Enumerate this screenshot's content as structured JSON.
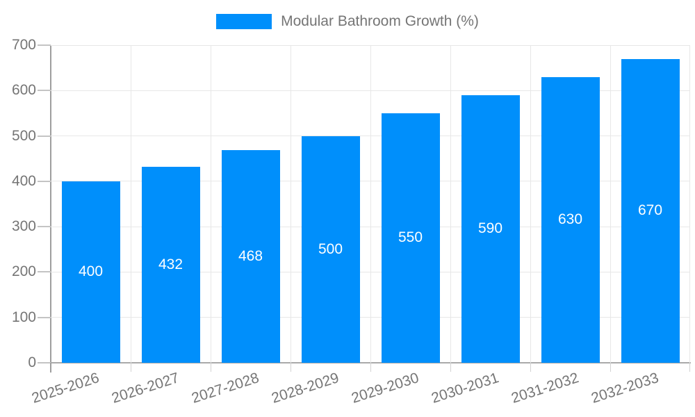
{
  "legend": {
    "label": "Modular Bathroom Growth (%)"
  },
  "colors": {
    "bar": "#008FFB",
    "axis_text": "#757575",
    "grid": "#e7e7e7",
    "axis_line": "#9e9e9e",
    "bar_label": "#ffffff",
    "background": "#ffffff"
  },
  "chart_data": {
    "type": "bar",
    "title": "",
    "xlabel": "",
    "ylabel": "",
    "legend": [
      "Modular Bathroom Growth (%)"
    ],
    "legend_position": "top-center",
    "categories": [
      "2025-2026",
      "2026-2027",
      "2027-2028",
      "2028-2029",
      "2029-2030",
      "2030-2031",
      "2031-2032",
      "2032-2033"
    ],
    "values": [
      400,
      432,
      468,
      500,
      550,
      590,
      630,
      670
    ],
    "value_labels_position": "inside-center",
    "ylim": [
      0,
      700
    ],
    "ytick_step": 100,
    "yticks": [
      0,
      100,
      200,
      300,
      400,
      500,
      600,
      700
    ],
    "grid": "horizontal-and-vertical",
    "x_label_rotation_deg": -18
  }
}
